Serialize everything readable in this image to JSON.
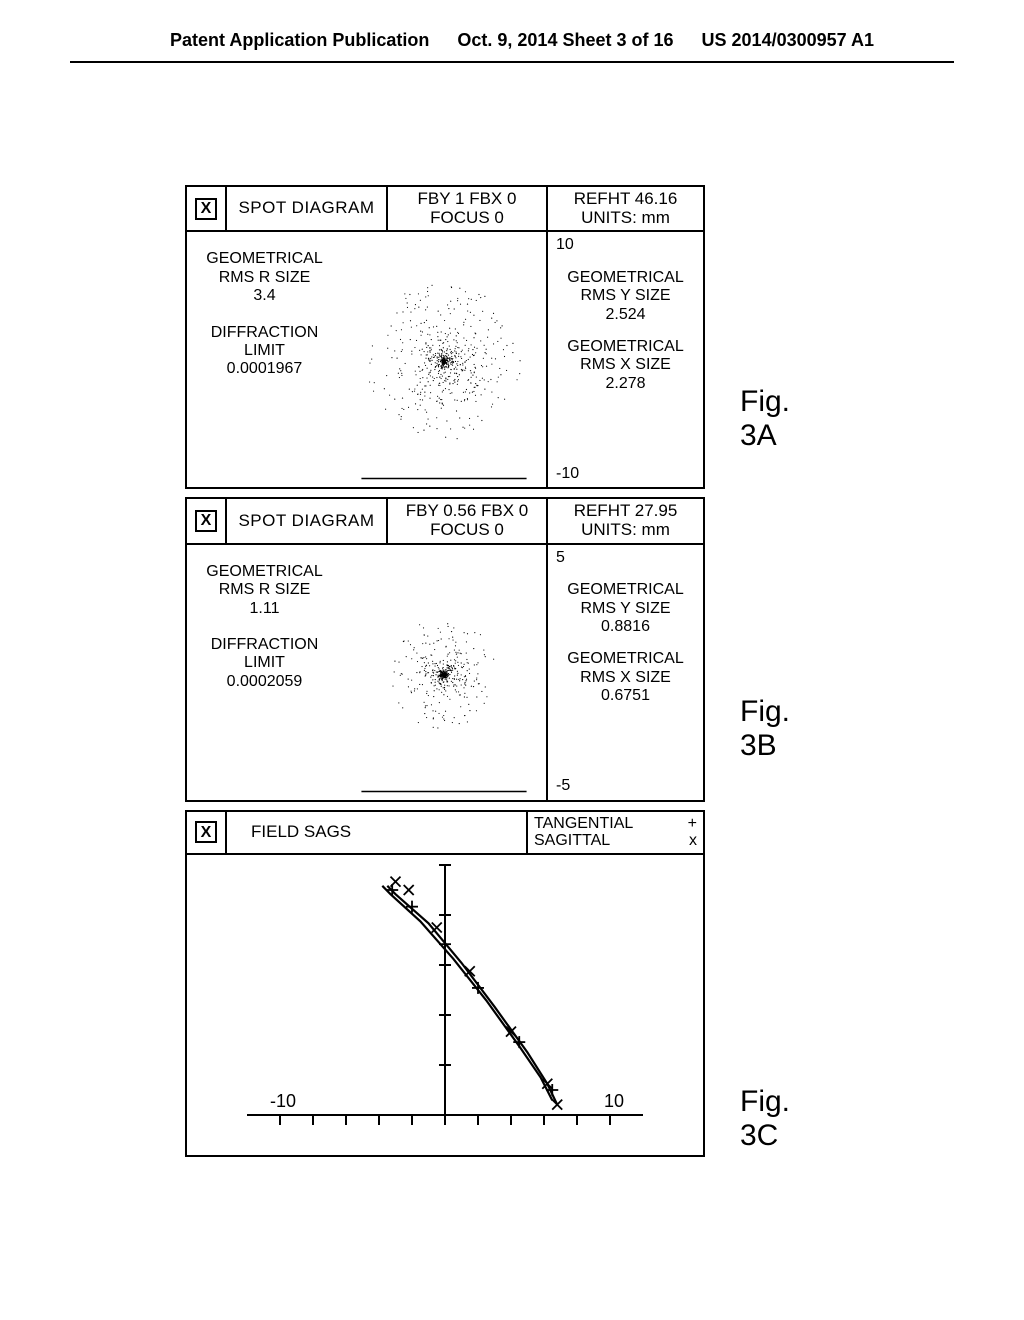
{
  "header": {
    "left": "Patent Application Publication",
    "center": "Oct. 9, 2014  Sheet 3 of 16",
    "right": "US 2014/0300957 A1"
  },
  "panelA": {
    "icon": "X",
    "title": "SPOT DIAGRAM",
    "field_line1": "FBY 1 FBX 0",
    "field_line2": "FOCUS 0",
    "ref_line1": "REFHT 46.16",
    "ref_line2": "UNITS: mm",
    "axis_top": "10",
    "axis_bottom": "-10",
    "left_block1_l1": "GEOMETRICAL",
    "left_block1_l2": "RMS R SIZE",
    "left_block1_l3": "3.4",
    "left_block2_l1": "DIFFRACTION",
    "left_block2_l2": "LIMIT",
    "left_block2_l3": "0.0001967",
    "right_block1_l1": "GEOMETRICAL",
    "right_block1_l2": "RMS Y SIZE",
    "right_block1_l3": "2.524",
    "right_block2_l1": "GEOMETRICAL",
    "right_block2_l2": "RMS X SIZE",
    "right_block2_l3": "2.278",
    "spot": {
      "type": "scatter",
      "n_points": 700,
      "spread": 1.0,
      "center_density": 2.2,
      "color": "#000000",
      "point_size": 0.6
    },
    "fig_label": "Fig. 3A"
  },
  "panelB": {
    "icon": "X",
    "title": "SPOT DIAGRAM",
    "field_line1": "FBY 0.56 FBX 0",
    "field_line2": "FOCUS 0",
    "ref_line1": "REFHT 27.95",
    "ref_line2": "UNITS: mm",
    "axis_top": "5",
    "axis_bottom": "-5",
    "left_block1_l1": "GEOMETRICAL",
    "left_block1_l2": "RMS R SIZE",
    "left_block1_l3": "1.11",
    "left_block2_l1": "DIFFRACTION",
    "left_block2_l2": "LIMIT",
    "left_block2_l3": "0.0002059",
    "right_block1_l1": "GEOMETRICAL",
    "right_block1_l2": "RMS Y SIZE",
    "right_block1_l3": "0.8816",
    "right_block2_l1": "GEOMETRICAL",
    "right_block2_l2": "RMS X SIZE",
    "right_block2_l3": "0.6751",
    "spot": {
      "type": "scatter",
      "n_points": 600,
      "spread": 0.7,
      "center_density": 3.0,
      "color": "#000000",
      "point_size": 0.6
    },
    "fig_label": "Fig. 3B"
  },
  "panelC": {
    "icon": "X",
    "title": "FIELD SAGS",
    "legend_tangential": "TANGENTIAL",
    "legend_tangential_sym": "+",
    "legend_sagittal": "SAGITTAL",
    "legend_sagittal_sym": "x",
    "x_left": "-10",
    "x_right": "10",
    "chart": {
      "type": "line",
      "xlim": [
        -12,
        12
      ],
      "ylim": [
        -1,
        11
      ],
      "x_ticks": [
        -10,
        -8,
        -6,
        -4,
        -2,
        0,
        2,
        4,
        6,
        8,
        10
      ],
      "y_ticks_count": 5,
      "curve_tangential": [
        {
          "x": -3.5,
          "y": 10
        },
        {
          "x": -3.0,
          "y": 9.6
        },
        {
          "x": -1.0,
          "y": 8.2
        },
        {
          "x": 1.0,
          "y": 6.3
        },
        {
          "x": 3.0,
          "y": 4.2
        },
        {
          "x": 5.0,
          "y": 2.0
        },
        {
          "x": 6.2,
          "y": 0.5
        },
        {
          "x": 6.8,
          "y": -0.5
        }
      ],
      "curve_sagittal": [
        {
          "x": -3.8,
          "y": 10
        },
        {
          "x": -3.3,
          "y": 9.6
        },
        {
          "x": -1.5,
          "y": 8.3
        },
        {
          "x": 0.5,
          "y": 6.5
        },
        {
          "x": 2.5,
          "y": 4.5
        },
        {
          "x": 4.5,
          "y": 2.3
        },
        {
          "x": 5.8,
          "y": 0.8
        },
        {
          "x": 6.5,
          "y": -0.3
        }
      ],
      "markers_tangential": [
        {
          "x": -3.2,
          "y": 9.8
        },
        {
          "x": -2.0,
          "y": 9.0
        },
        {
          "x": 0.0,
          "y": 7.2
        },
        {
          "x": 2.0,
          "y": 5.1
        },
        {
          "x": 4.5,
          "y": 2.5
        },
        {
          "x": 6.5,
          "y": 0.2
        }
      ],
      "markers_sagittal": [
        {
          "x": -3.0,
          "y": 10.2
        },
        {
          "x": -2.2,
          "y": 9.8
        },
        {
          "x": -0.5,
          "y": 8.0
        },
        {
          "x": 1.5,
          "y": 5.9
        },
        {
          "x": 4.0,
          "y": 3.0
        },
        {
          "x": 6.2,
          "y": 0.5
        },
        {
          "x": 6.8,
          "y": -0.5
        }
      ],
      "line_color": "#000000",
      "line_width": 2.2
    },
    "fig_label": "Fig. 3C"
  }
}
